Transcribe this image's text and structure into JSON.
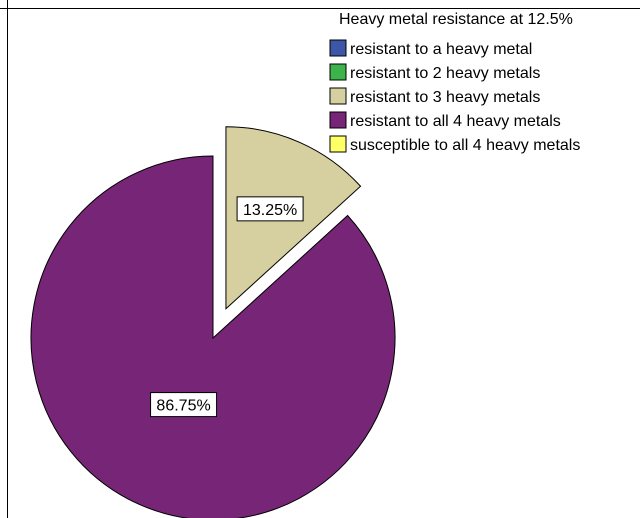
{
  "chart_data": {
    "type": "pie",
    "legend_title": "Heavy metal resistance at 12.5%",
    "legend_position": "top-right",
    "legend": [
      {
        "label": "resistant to a heavy metal",
        "color": "#3d56a6"
      },
      {
        "label": "resistant to 2 heavy metals",
        "color": "#3cb44b"
      },
      {
        "label": "resistant to 3 heavy metals",
        "color": "#d6d0a0"
      },
      {
        "label": "resistant to all 4 heavy metals",
        "color": "#772577"
      },
      {
        "label": "susceptible to all 4 heavy metals",
        "color": "#ffff66"
      }
    ],
    "slices": [
      {
        "category": "resistant to 3 heavy metals",
        "value": 13.25,
        "label": "13.25%",
        "color": "#d6d0a0",
        "exploded": true
      },
      {
        "category": "resistant to all 4 heavy metals",
        "value": 86.75,
        "label": "86.75%",
        "color": "#772577",
        "exploded": false
      }
    ]
  }
}
